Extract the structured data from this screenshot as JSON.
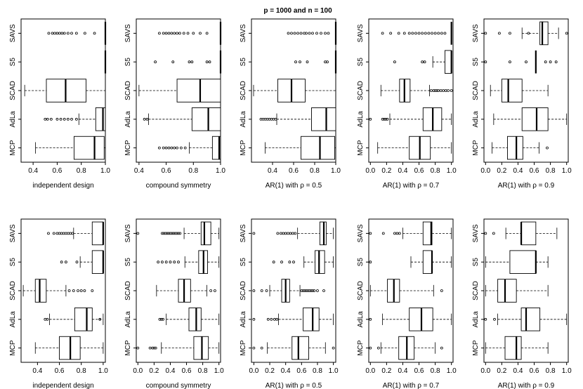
{
  "chart_data": {
    "type": "boxplot",
    "title": "p =  1000  and n =  100",
    "methods_bottom_to_top": [
      "MCP",
      "AdLa",
      "SCAD",
      "S5",
      "SAVS"
    ],
    "panels": [
      {
        "row": 1,
        "xlabel": "independent design",
        "xlim": [
          0.3,
          1.0
        ],
        "xticks": [
          0.4,
          0.6,
          0.8,
          1.0
        ],
        "xtick_labels": [
          "0.4",
          "0.6",
          "0.8",
          "1.0"
        ],
        "boxes": [
          {
            "method": "MCP",
            "wlo": 0.42,
            "q1": 0.74,
            "med": 0.91,
            "q3": 0.99,
            "whi": 1.0,
            "outliers": []
          },
          {
            "method": "AdLa",
            "wlo": 0.78,
            "q1": 0.92,
            "med": 0.98,
            "q3": 1.0,
            "whi": 1.0,
            "outliers": [
              0.5,
              0.52,
              0.55,
              0.6,
              0.63,
              0.66,
              0.69,
              0.72,
              0.76
            ]
          },
          {
            "method": "SCAD",
            "wlo": 0.33,
            "q1": 0.51,
            "med": 0.67,
            "q3": 0.84,
            "whi": 1.0,
            "outliers": []
          },
          {
            "method": "S5",
            "wlo": 1.0,
            "q1": 1.0,
            "med": 1.0,
            "q3": 1.0,
            "whi": 1.0,
            "outliers": []
          },
          {
            "method": "SAVS",
            "wlo": 1.0,
            "q1": 1.0,
            "med": 1.0,
            "q3": 1.0,
            "whi": 1.0,
            "outliers": [
              0.53,
              0.56,
              0.58,
              0.6,
              0.62,
              0.64,
              0.66,
              0.69,
              0.72,
              0.76,
              0.83,
              0.91
            ]
          }
        ]
      },
      {
        "row": 1,
        "xlabel": "compound symmetry",
        "xlim": [
          0.38,
          1.0
        ],
        "xticks": [
          0.4,
          0.6,
          0.8,
          1.0
        ],
        "xtick_labels": [
          "0.4",
          "0.6",
          "0.8",
          "1.0"
        ],
        "boxes": [
          {
            "method": "MCP",
            "wlo": 0.77,
            "q1": 0.94,
            "med": 0.99,
            "q3": 1.0,
            "whi": 1.0,
            "outliers": [
              0.55,
              0.58,
              0.6,
              0.62,
              0.64,
              0.66,
              0.68,
              0.71,
              0.74
            ]
          },
          {
            "method": "AdLa",
            "wlo": 0.47,
            "q1": 0.79,
            "med": 0.91,
            "q3": 1.0,
            "whi": 1.0,
            "outliers": [
              0.44,
              0.46
            ]
          },
          {
            "method": "SCAD",
            "wlo": 0.4,
            "q1": 0.68,
            "med": 0.85,
            "q3": 1.0,
            "whi": 1.0,
            "outliers": []
          },
          {
            "method": "S5",
            "wlo": 1.0,
            "q1": 1.0,
            "med": 1.0,
            "q3": 1.0,
            "whi": 1.0,
            "outliers": [
              0.52,
              0.65,
              0.77,
              0.79,
              0.9,
              0.92
            ]
          },
          {
            "method": "SAVS",
            "wlo": 1.0,
            "q1": 1.0,
            "med": 1.0,
            "q3": 1.0,
            "whi": 1.0,
            "outliers": [
              0.55,
              0.58,
              0.6,
              0.62,
              0.64,
              0.66,
              0.68,
              0.7,
              0.73,
              0.76,
              0.8,
              0.85,
              0.9
            ]
          }
        ]
      },
      {
        "row": 1,
        "xlabel": "AR(1) with ρ = 0.5",
        "xlim": [
          0.2,
          1.0
        ],
        "xticks": [
          0.4,
          0.6,
          0.8,
          1.0
        ],
        "xtick_labels": [
          "0.4",
          "0.6",
          "0.8",
          "1.0"
        ],
        "boxes": [
          {
            "method": "MCP",
            "wlo": 0.33,
            "q1": 0.67,
            "med": 0.85,
            "q3": 0.99,
            "whi": 1.0,
            "outliers": []
          },
          {
            "method": "AdLa",
            "wlo": 0.44,
            "q1": 0.77,
            "med": 0.91,
            "q3": 1.0,
            "whi": 1.0,
            "outliers": [
              0.29,
              0.31,
              0.33,
              0.35,
              0.37,
              0.39,
              0.41,
              0.43
            ]
          },
          {
            "method": "SCAD",
            "wlo": 0.22,
            "q1": 0.45,
            "med": 0.58,
            "q3": 0.71,
            "whi": 1.0,
            "outliers": []
          },
          {
            "method": "S5",
            "wlo": 1.0,
            "q1": 1.0,
            "med": 1.0,
            "q3": 1.0,
            "whi": 1.0,
            "outliers": [
              0.62,
              0.66,
              0.73,
              0.9,
              0.92
            ]
          },
          {
            "method": "SAVS",
            "wlo": 1.0,
            "q1": 1.0,
            "med": 1.0,
            "q3": 1.0,
            "whi": 1.0,
            "outliers": [
              0.55,
              0.58,
              0.61,
              0.64,
              0.67,
              0.7,
              0.72,
              0.75,
              0.78,
              0.82,
              0.86,
              0.9,
              0.93
            ]
          }
        ]
      },
      {
        "row": 1,
        "xlabel": "AR(1) with ρ = 0.7",
        "xlim": [
          -0.02,
          1.02
        ],
        "xticks": [
          0.0,
          0.2,
          0.4,
          0.6,
          0.8,
          1.0
        ],
        "xtick_labels": [
          "0.0",
          "0.2",
          "0.4",
          "0.6",
          "0.8",
          "1.0"
        ],
        "boxes": [
          {
            "method": "MCP",
            "wlo": 0.09,
            "q1": 0.48,
            "med": 0.61,
            "q3": 0.74,
            "whi": 1.0,
            "outliers": []
          },
          {
            "method": "AdLa",
            "wlo": 0.24,
            "q1": 0.65,
            "med": 0.77,
            "q3": 0.88,
            "whi": 1.0,
            "outliers": [
              0.0,
              0.15,
              0.17,
              0.19,
              0.21
            ]
          },
          {
            "method": "SCAD",
            "wlo": 0.13,
            "q1": 0.36,
            "med": 0.42,
            "q3": 0.49,
            "whi": 0.73,
            "outliers": [
              0.75,
              0.78,
              0.8,
              0.82,
              0.84,
              0.87,
              0.9,
              0.93,
              0.96,
              1.0
            ]
          },
          {
            "method": "S5",
            "wlo": 0.77,
            "q1": 0.92,
            "med": 1.0,
            "q3": 1.0,
            "whi": 1.0,
            "outliers": [
              0.3,
              0.64,
              0.67
            ]
          },
          {
            "method": "SAVS",
            "wlo": 1.0,
            "q1": 1.0,
            "med": 1.0,
            "q3": 1.0,
            "whi": 1.0,
            "outliers": [
              0.15,
              0.25,
              0.35,
              0.42,
              0.48,
              0.52,
              0.56,
              0.6,
              0.64,
              0.68,
              0.72,
              0.76,
              0.8,
              0.84,
              0.88,
              0.92
            ]
          }
        ]
      },
      {
        "row": 1,
        "xlabel": "AR(1) with ρ = 0.9",
        "xlim": [
          -0.02,
          1.02
        ],
        "xticks": [
          0.0,
          0.2,
          0.4,
          0.6,
          0.8,
          1.0
        ],
        "xtick_labels": [
          "0.0",
          "0.2",
          "0.4",
          "0.6",
          "0.8",
          "1.0"
        ],
        "boxes": [
          {
            "method": "MCP",
            "wlo": 0.08,
            "q1": 0.27,
            "med": 0.38,
            "q3": 0.46,
            "whi": 0.66,
            "outliers": [
              0.76
            ]
          },
          {
            "method": "AdLa",
            "wlo": 0.1,
            "q1": 0.45,
            "med": 0.63,
            "q3": 0.77,
            "whi": 1.0,
            "outliers": []
          },
          {
            "method": "SCAD",
            "wlo": 0.06,
            "q1": 0.2,
            "med": 0.28,
            "q3": 0.45,
            "whi": 0.77,
            "outliers": []
          },
          {
            "method": "S5",
            "wlo": 0.62,
            "q1": 0.62,
            "med": 0.62,
            "q3": 0.62,
            "whi": 0.62,
            "outliers": [
              0.0,
              0.3,
              0.5,
              0.74,
              0.8,
              0.87
            ]
          },
          {
            "method": "SAVS",
            "wlo": 0.45,
            "q1": 0.67,
            "med": 0.7,
            "q3": 0.77,
            "whi": 0.9,
            "outliers": [
              0.0,
              0.17,
              0.3,
              0.53,
              1.0
            ]
          }
        ]
      },
      {
        "row": 2,
        "xlabel": "independent design",
        "xlim": [
          0.25,
          1.02
        ],
        "xticks": [
          0.4,
          0.6,
          0.8,
          1.0
        ],
        "xtick_labels": [
          "0.4",
          "0.6",
          "0.8",
          "1.0"
        ],
        "boxes": [
          {
            "method": "MCP",
            "wlo": 0.38,
            "q1": 0.6,
            "med": 0.7,
            "q3": 0.79,
            "whi": 1.0,
            "outliers": []
          },
          {
            "method": "AdLa",
            "wlo": 0.51,
            "q1": 0.74,
            "med": 0.85,
            "q3": 0.9,
            "whi": 1.0,
            "outliers": [
              0.47,
              0.49,
              0.97
            ]
          },
          {
            "method": "SCAD",
            "wlo": 0.27,
            "q1": 0.38,
            "med": 0.42,
            "q3": 0.48,
            "whi": 0.66,
            "outliers": [
              0.69,
              0.73,
              0.77,
              0.8,
              0.83,
              0.9
            ]
          },
          {
            "method": "S5",
            "wlo": 0.79,
            "q1": 0.9,
            "med": 1.0,
            "q3": 1.0,
            "whi": 1.0,
            "outliers": [
              0.62,
              0.66,
              0.76
            ]
          },
          {
            "method": "SAVS",
            "wlo": 0.73,
            "q1": 0.9,
            "med": 1.0,
            "q3": 1.0,
            "whi": 1.0,
            "outliers": [
              0.5,
              0.55,
              0.58,
              0.6,
              0.62,
              0.64,
              0.66,
              0.68,
              0.7,
              0.72
            ]
          }
        ]
      },
      {
        "row": 2,
        "xlabel": "compound symmetry",
        "xlim": [
          -0.02,
          1.02
        ],
        "xticks": [
          0.0,
          0.2,
          0.4,
          0.6,
          0.8,
          1.0
        ],
        "xtick_labels": [
          "0.0",
          "0.2",
          "0.4",
          "0.6",
          "0.8",
          "1.0"
        ],
        "boxes": [
          {
            "method": "MCP",
            "wlo": 0.29,
            "q1": 0.69,
            "med": 0.79,
            "q3": 0.87,
            "whi": 1.0,
            "outliers": [
              0.0,
              0.15,
              0.18,
              0.2,
              0.22
            ]
          },
          {
            "method": "AdLa",
            "wlo": 0.35,
            "q1": 0.63,
            "med": 0.72,
            "q3": 0.78,
            "whi": 1.0,
            "outliers": [
              0.27,
              0.29,
              0.31
            ]
          },
          {
            "method": "SCAD",
            "wlo": 0.23,
            "q1": 0.5,
            "med": 0.57,
            "q3": 0.65,
            "whi": 0.85,
            "outliers": [
              0.9,
              0.95
            ]
          },
          {
            "method": "S5",
            "wlo": 0.58,
            "q1": 0.75,
            "med": 0.81,
            "q3": 0.86,
            "whi": 1.0,
            "outliers": [
              0.25,
              0.3,
              0.35,
              0.4,
              0.45,
              0.5
            ]
          },
          {
            "method": "SAVS",
            "wlo": 0.57,
            "q1": 0.78,
            "med": 0.82,
            "q3": 0.9,
            "whi": 1.0,
            "outliers": [
              0.0,
              0.3,
              0.32,
              0.34,
              0.36,
              0.38,
              0.4,
              0.42,
              0.44,
              0.46,
              0.48,
              0.5,
              0.52
            ]
          }
        ]
      },
      {
        "row": 2,
        "xlabel": "AR(1) with ρ = 0.5",
        "xlim": [
          -0.03,
          1.03
        ],
        "xticks": [
          0.0,
          0.2,
          0.4,
          0.6,
          0.8,
          1.0
        ],
        "xtick_labels": [
          "0.0",
          "0.2",
          "0.4",
          "0.6",
          "0.8",
          "1.0"
        ],
        "boxes": [
          {
            "method": "MCP",
            "wlo": 0.17,
            "q1": 0.48,
            "med": 0.56,
            "q3": 0.69,
            "whi": 0.9,
            "outliers": [
              0.0,
              0.1,
              1.0
            ]
          },
          {
            "method": "AdLa",
            "wlo": 0.31,
            "q1": 0.62,
            "med": 0.74,
            "q3": 0.82,
            "whi": 1.0,
            "outliers": [
              0.0,
              0.18,
              0.22,
              0.26,
              0.29
            ]
          },
          {
            "method": "SCAD",
            "wlo": 0.2,
            "q1": 0.35,
            "med": 0.4,
            "q3": 0.45,
            "whi": 0.58,
            "outliers": [
              0.0,
              0.1,
              0.16,
              0.6,
              0.62,
              0.64,
              0.66,
              0.68,
              0.7,
              0.72,
              0.74,
              0.76,
              0.8,
              0.88
            ]
          },
          {
            "method": "S5",
            "wlo": 0.63,
            "q1": 0.77,
            "med": 0.82,
            "q3": 0.89,
            "whi": 1.0,
            "outliers": [
              0.25,
              0.35,
              0.45,
              0.5
            ]
          },
          {
            "method": "SAVS",
            "wlo": 0.55,
            "q1": 0.83,
            "med": 0.88,
            "q3": 0.91,
            "whi": 1.0,
            "outliers": [
              0.0,
              0.3,
              0.34,
              0.37,
              0.4,
              0.43,
              0.46,
              0.49,
              0.52
            ]
          }
        ]
      },
      {
        "row": 2,
        "xlabel": "AR(1) with ρ = 0.7",
        "xlim": [
          -0.02,
          1.02
        ],
        "xticks": [
          0.0,
          0.2,
          0.4,
          0.6,
          0.8,
          1.0
        ],
        "xtick_labels": [
          "0.0",
          "0.2",
          "0.4",
          "0.6",
          "0.8",
          "1.0"
        ],
        "boxes": [
          {
            "method": "MCP",
            "wlo": 0.13,
            "q1": 0.35,
            "med": 0.45,
            "q3": 0.54,
            "whi": 0.8,
            "outliers": [
              0.0,
              0.1,
              0.88
            ]
          },
          {
            "method": "AdLa",
            "wlo": 0.15,
            "q1": 0.48,
            "med": 0.63,
            "q3": 0.77,
            "whi": 1.0,
            "outliers": [
              0.0
            ]
          },
          {
            "method": "SCAD",
            "wlo": 0.0,
            "q1": 0.21,
            "med": 0.29,
            "q3": 0.36,
            "whi": 0.78,
            "outliers": [
              0.88
            ]
          },
          {
            "method": "S5",
            "wlo": 0.5,
            "q1": 0.65,
            "med": 0.76,
            "q3": 0.76,
            "whi": 1.0,
            "outliers": [
              0.0
            ]
          },
          {
            "method": "SAVS",
            "wlo": 0.4,
            "q1": 0.65,
            "med": 0.75,
            "q3": 0.76,
            "whi": 1.0,
            "outliers": [
              0.0,
              0.16,
              0.3,
              0.33,
              0.36
            ]
          }
        ]
      },
      {
        "row": 2,
        "xlabel": "AR(1) with ρ = 0.9",
        "xlim": [
          -0.02,
          1.02
        ],
        "xticks": [
          0.0,
          0.2,
          0.4,
          0.6,
          0.8,
          1.0
        ],
        "xtick_labels": [
          "0.0",
          "0.2",
          "0.4",
          "0.6",
          "0.8",
          "1.0"
        ],
        "boxes": [
          {
            "method": "MCP",
            "wlo": 0.0,
            "q1": 0.24,
            "med": 0.38,
            "q3": 0.44,
            "whi": 0.77,
            "outliers": []
          },
          {
            "method": "AdLa",
            "wlo": 0.15,
            "q1": 0.44,
            "med": 0.5,
            "q3": 0.67,
            "whi": 1.0,
            "outliers": [
              0.0,
              0.11
            ]
          },
          {
            "method": "SCAD",
            "wlo": 0.0,
            "q1": 0.15,
            "med": 0.24,
            "q3": 0.38,
            "whi": 0.77,
            "outliers": []
          },
          {
            "method": "S5",
            "wlo": 0.0,
            "q1": 0.3,
            "med": 0.62,
            "q3": 0.62,
            "whi": 0.77,
            "outliers": []
          },
          {
            "method": "SAVS",
            "wlo": 0.25,
            "q1": 0.44,
            "med": 0.44,
            "q3": 0.62,
            "whi": 0.88,
            "outliers": [
              0.0,
              0.1
            ]
          }
        ]
      }
    ]
  }
}
